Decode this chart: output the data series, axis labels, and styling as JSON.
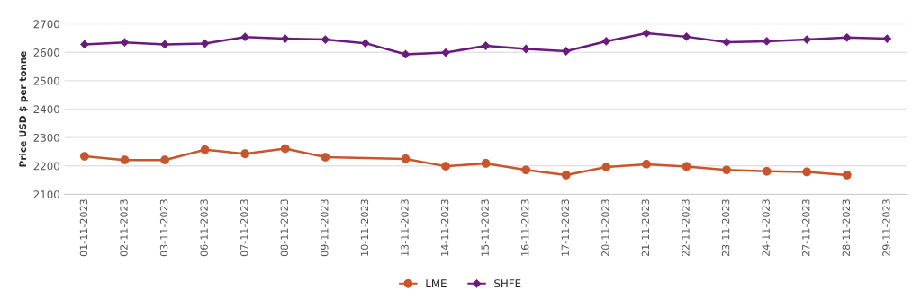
{
  "chart_data": {
    "type": "line",
    "ylabel": "Price USD $ per tonne",
    "categories": [
      "01-11-2023",
      "02-11-2023",
      "03-11-2023",
      "06-11-2023",
      "07-11-2023",
      "08-11-2023",
      "09-11-2023",
      "10-11-2023",
      "13-11-2023",
      "14-11-2023",
      "15-11-2023",
      "16-11-2023",
      "17-11-2023",
      "20-11-2023",
      "21-11-2023",
      "22-11-2023",
      "23-11-2023",
      "24-11-2023",
      "27-11-2023",
      "28-11-2023",
      "29-11-2023"
    ],
    "series": [
      {
        "name": "LME",
        "color": "#c8552b",
        "marker": "circle",
        "values": [
          2234,
          2221,
          2221,
          2257,
          2243,
          2261,
          2231,
          null,
          2225,
          2199,
          2209,
          2186,
          2168,
          2196,
          2206,
          2198,
          2186,
          2181,
          2179,
          2168,
          null
        ]
      },
      {
        "name": "SHFE",
        "color": "#6a1b7e",
        "marker": "diamond",
        "values": [
          2628,
          2635,
          2628,
          2631,
          2654,
          2648,
          2645,
          2632,
          2593,
          2599,
          2623,
          2612,
          2604,
          2639,
          2667,
          2655,
          2636,
          2639,
          2645,
          2652,
          2648
        ]
      }
    ],
    "ylim": [
      2100,
      2700
    ],
    "yticks": [
      2100,
      2200,
      2300,
      2400,
      2500,
      2600,
      2700
    ],
    "grid": "y",
    "legend": "bottom",
    "line_style": "solid"
  }
}
